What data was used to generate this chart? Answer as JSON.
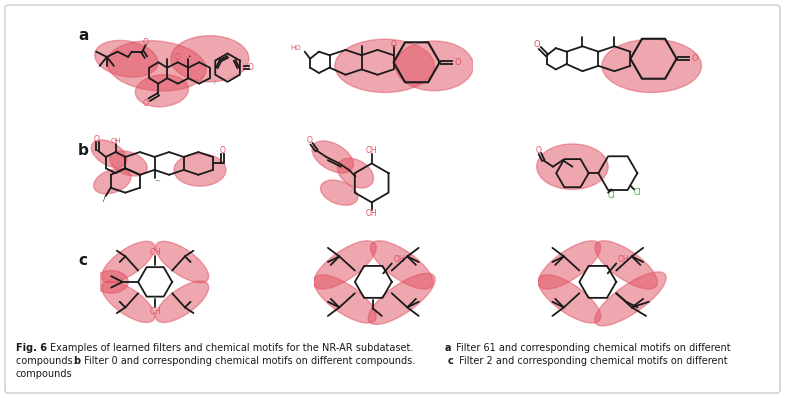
{
  "background_color": "#ffffff",
  "border_color": "#c0c0c0",
  "red": "#e05060",
  "red_alpha": 0.5,
  "black": "#1a1a1a",
  "green": "#3aaa35",
  "fig_width": 7.85,
  "fig_height": 3.98,
  "caption_line1": "Examples of learned filters and chemical motifs for the NR-AR subdataset. ",
  "caption_a_label": "a",
  "caption_a_text": " Filter 61 and corresponding chemical motifs on different",
  "caption_line2_pre": "compounds. ",
  "caption_b_label": "b",
  "caption_b_text": " Filter 0 and corresponding chemical motifs on different compounds. ",
  "caption_c_label": "c",
  "caption_c_text": " Filter 2 and corresponding chemical motifs on different",
  "caption_line3": "compounds",
  "fig6_bold": "Fig. 6"
}
